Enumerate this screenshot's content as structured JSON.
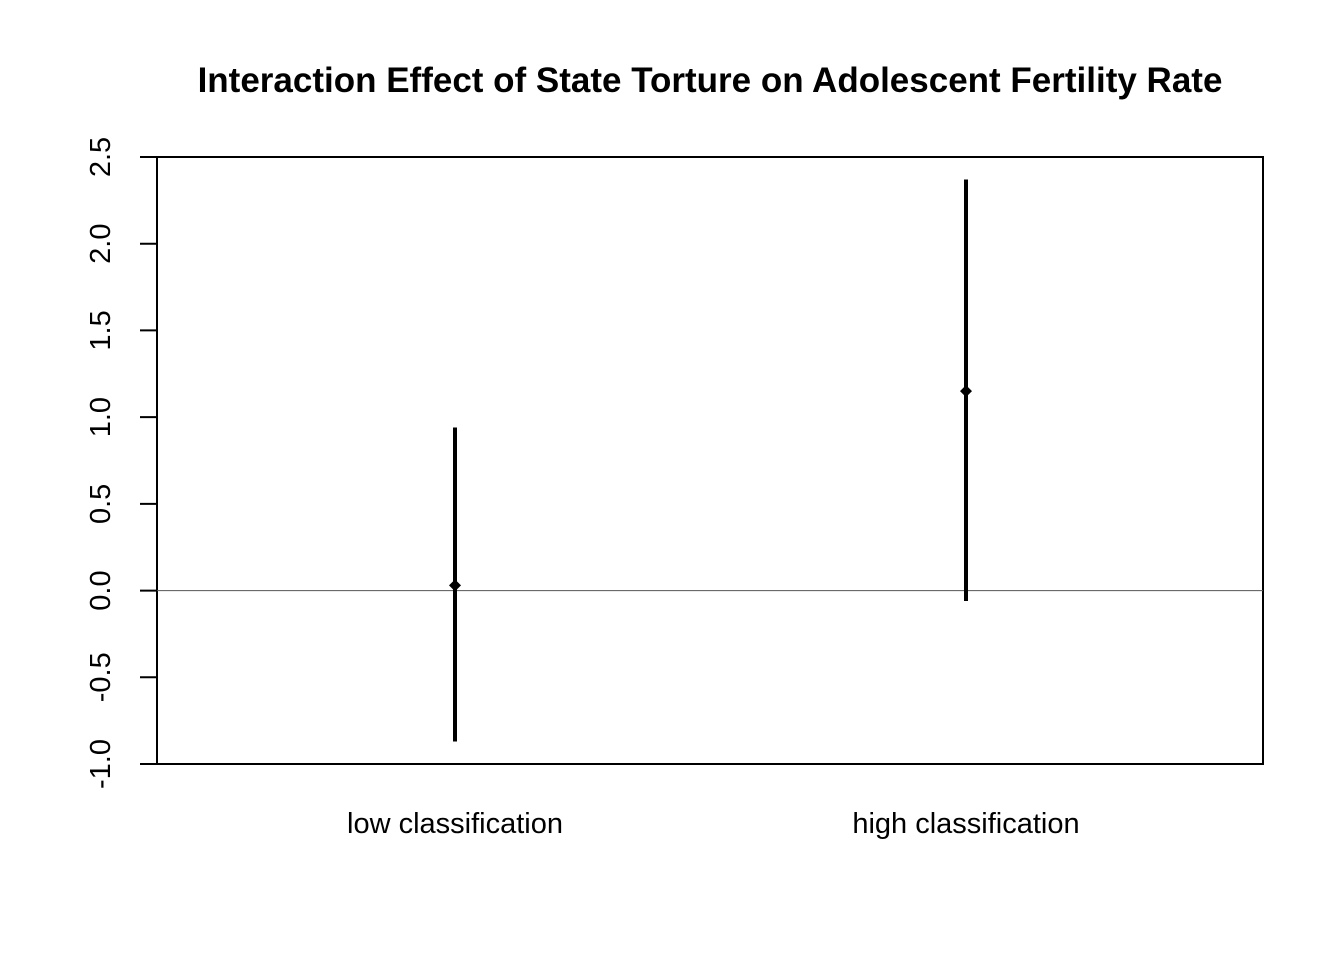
{
  "chart_data": {
    "type": "point-range",
    "title": "Interaction Effect of State Torture on Adolescent Fertility Rate",
    "xlabel": "",
    "ylabel": "",
    "categories": [
      "low classification",
      "high classification"
    ],
    "estimates": [
      0.03,
      1.15
    ],
    "lower": [
      -0.87,
      -0.06
    ],
    "upper": [
      0.94,
      2.37
    ],
    "ylim": [
      -1.0,
      2.5
    ],
    "yticks": [
      -1.0,
      -0.5,
      0.0,
      0.5,
      1.0,
      1.5,
      2.0,
      2.5
    ],
    "ytick_labels": [
      "-1.0",
      "-0.5",
      "0.0",
      "0.5",
      "1.0",
      "1.5",
      "2.0",
      "2.5"
    ],
    "reference_line": 0.0,
    "grid": false,
    "legend": "none"
  }
}
